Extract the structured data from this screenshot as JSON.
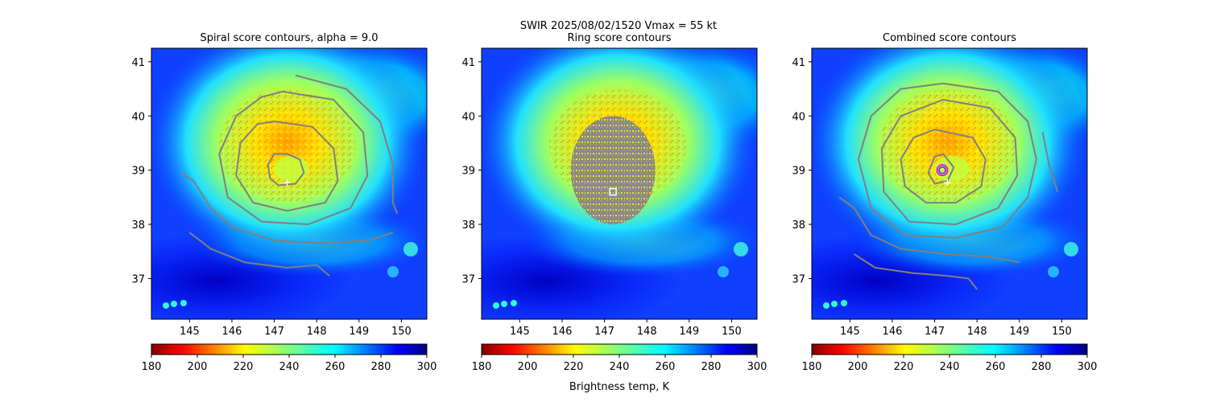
{
  "figure": {
    "suptitle_line": "SWIR  2025/08/02/1520    Vmax = 55 kt",
    "colorbar_label": "Brightness temp, K"
  },
  "chart_data": [
    {
      "type": "heatmap",
      "title": "Spiral score contours, alpha =  9.0",
      "xlim": [
        144.1,
        150.6
      ],
      "ylim": [
        36.25,
        41.25
      ],
      "xticks": [
        "145",
        "146",
        "147",
        "148",
        "149",
        "150"
      ],
      "yticks": [
        "37",
        "38",
        "39",
        "40",
        "41"
      ],
      "colorbar": {
        "vmin": 180,
        "vmax": 300,
        "ticks": [
          "180",
          "200",
          "220",
          "240",
          "260",
          "280",
          "300"
        ]
      },
      "storm_eye": [
        147.5,
        38.85
      ],
      "marker_plus": [
        147.3,
        38.77
      ],
      "contours": "spiral"
    },
    {
      "type": "heatmap",
      "title": "Ring score contours",
      "xlim": [
        144.1,
        150.6
      ],
      "ylim": [
        36.25,
        41.25
      ],
      "xticks": [
        "145",
        "146",
        "147",
        "148",
        "149",
        "150"
      ],
      "yticks": [
        "37",
        "38",
        "39",
        "40",
        "41"
      ],
      "colorbar": {
        "vmin": 180,
        "vmax": 300,
        "ticks": [
          "180",
          "200",
          "220",
          "240",
          "260",
          "280",
          "300"
        ]
      },
      "storm_eye": [
        147.5,
        38.85
      ],
      "ring_disk": {
        "center": [
          147.2,
          39.0
        ],
        "radius_deg": 1.0
      },
      "marker_square": [
        147.2,
        38.6
      ],
      "contours": "ring"
    },
    {
      "type": "heatmap",
      "title": "Combined score contours",
      "xlim": [
        144.1,
        150.6
      ],
      "ylim": [
        36.25,
        41.25
      ],
      "xticks": [
        "145",
        "146",
        "147",
        "148",
        "149",
        "150"
      ],
      "yticks": [
        "37",
        "38",
        "39",
        "40",
        "41"
      ],
      "colorbar": {
        "vmin": 180,
        "vmax": 300,
        "ticks": [
          "180",
          "200",
          "220",
          "240",
          "260",
          "280",
          "300"
        ]
      },
      "storm_eye": [
        147.5,
        38.85
      ],
      "marker_plus": [
        147.3,
        38.77
      ],
      "marker_circle": [
        147.18,
        39.0
      ],
      "contours": "combined"
    }
  ],
  "colors": {
    "contour": "#808080",
    "marker_plus": "#ffffff",
    "marker_square": "#ffffff",
    "marker_circle_outer": "#ff00ff",
    "marker_circle_inner": "#3030ff"
  }
}
